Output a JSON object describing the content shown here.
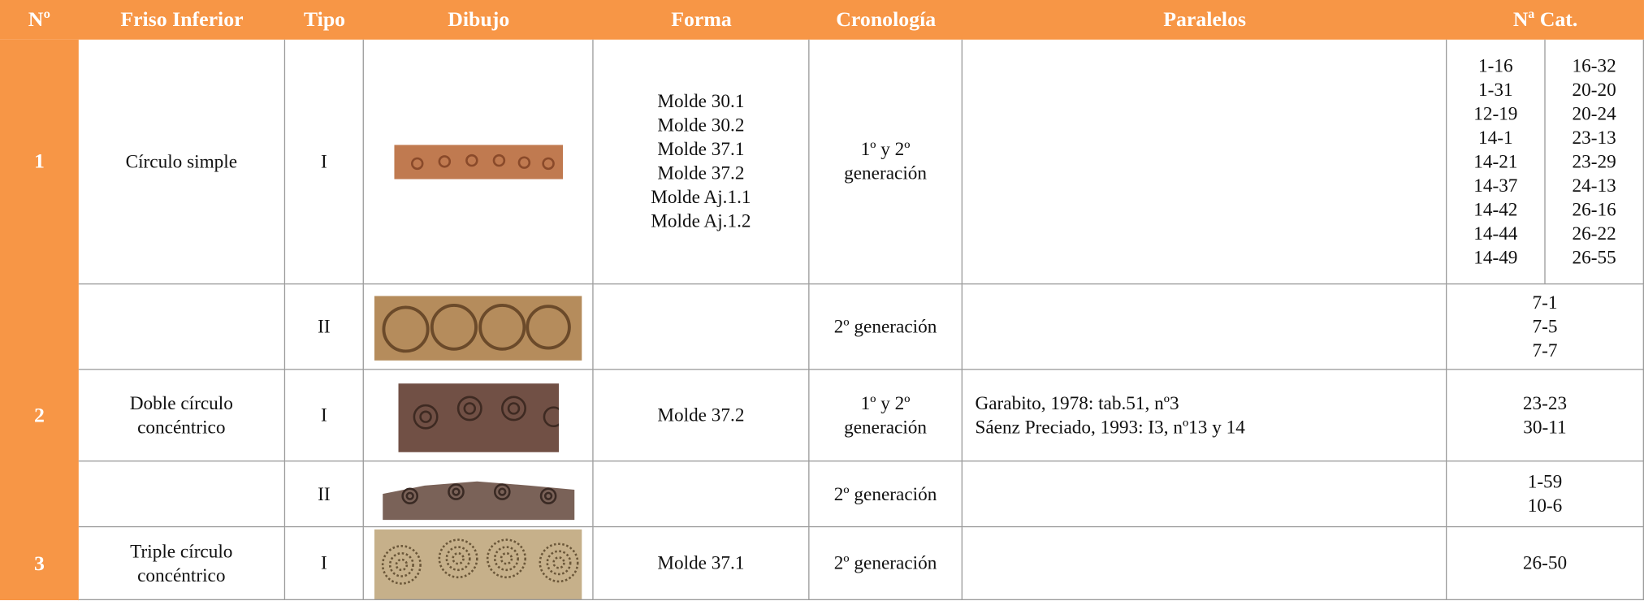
{
  "header": [
    "Nº",
    "Friso Inferior",
    "Tipo",
    "Dibujo",
    "Forma",
    "Cronología",
    "Paralelos",
    "Nª Cat."
  ],
  "rows": [
    {
      "num": "1",
      "friso": [
        "Círculo simple"
      ],
      "tipo": "I",
      "forma": [
        "Molde 30.1",
        "Molde 30.2",
        "Molde  37.1",
        "Molde  37.2",
        "Molde  Aj.1.1",
        "Molde Aj.1.2"
      ],
      "crono": [
        "1º y 2º",
        "generación"
      ],
      "cat": [
        [
          "1-16",
          "1-31",
          "12-19",
          "14-1",
          "14-21",
          "14-37",
          "14-42",
          "14-44",
          "14-49"
        ],
        [
          "16-32",
          "20-20",
          "20-24",
          "23-13",
          "23-29",
          "24-13",
          "26-16",
          "26-22",
          "26-55"
        ]
      ]
    },
    {
      "tipo": "II",
      "crono": [
        "2º generación"
      ],
      "cat": [
        [
          "7-1",
          "7-5",
          "7-7"
        ]
      ]
    },
    {
      "num": "2",
      "friso": [
        "Doble círculo",
        "concéntrico"
      ],
      "tipo": "I",
      "forma": [
        "Molde  37.2"
      ],
      "crono": [
        "1º y 2º",
        "generación"
      ],
      "paralelos": [
        "Garabito, 1978: tab.51, nº3",
        "Sáenz Preciado, 1993: I3, nº13 y 14"
      ],
      "cat": [
        [
          "23-23",
          "30-11"
        ]
      ]
    },
    {
      "tipo": "II",
      "crono": [
        "2º generación"
      ],
      "cat": [
        [
          "1-59",
          "10-6"
        ]
      ]
    },
    {
      "num": "3",
      "friso": [
        "Triple círculo",
        "concéntrico"
      ],
      "tipo": "I",
      "forma": [
        "Molde 37.1"
      ],
      "crono": [
        "2º generación"
      ],
      "cat": [
        [
          "26-50"
        ]
      ]
    }
  ]
}
